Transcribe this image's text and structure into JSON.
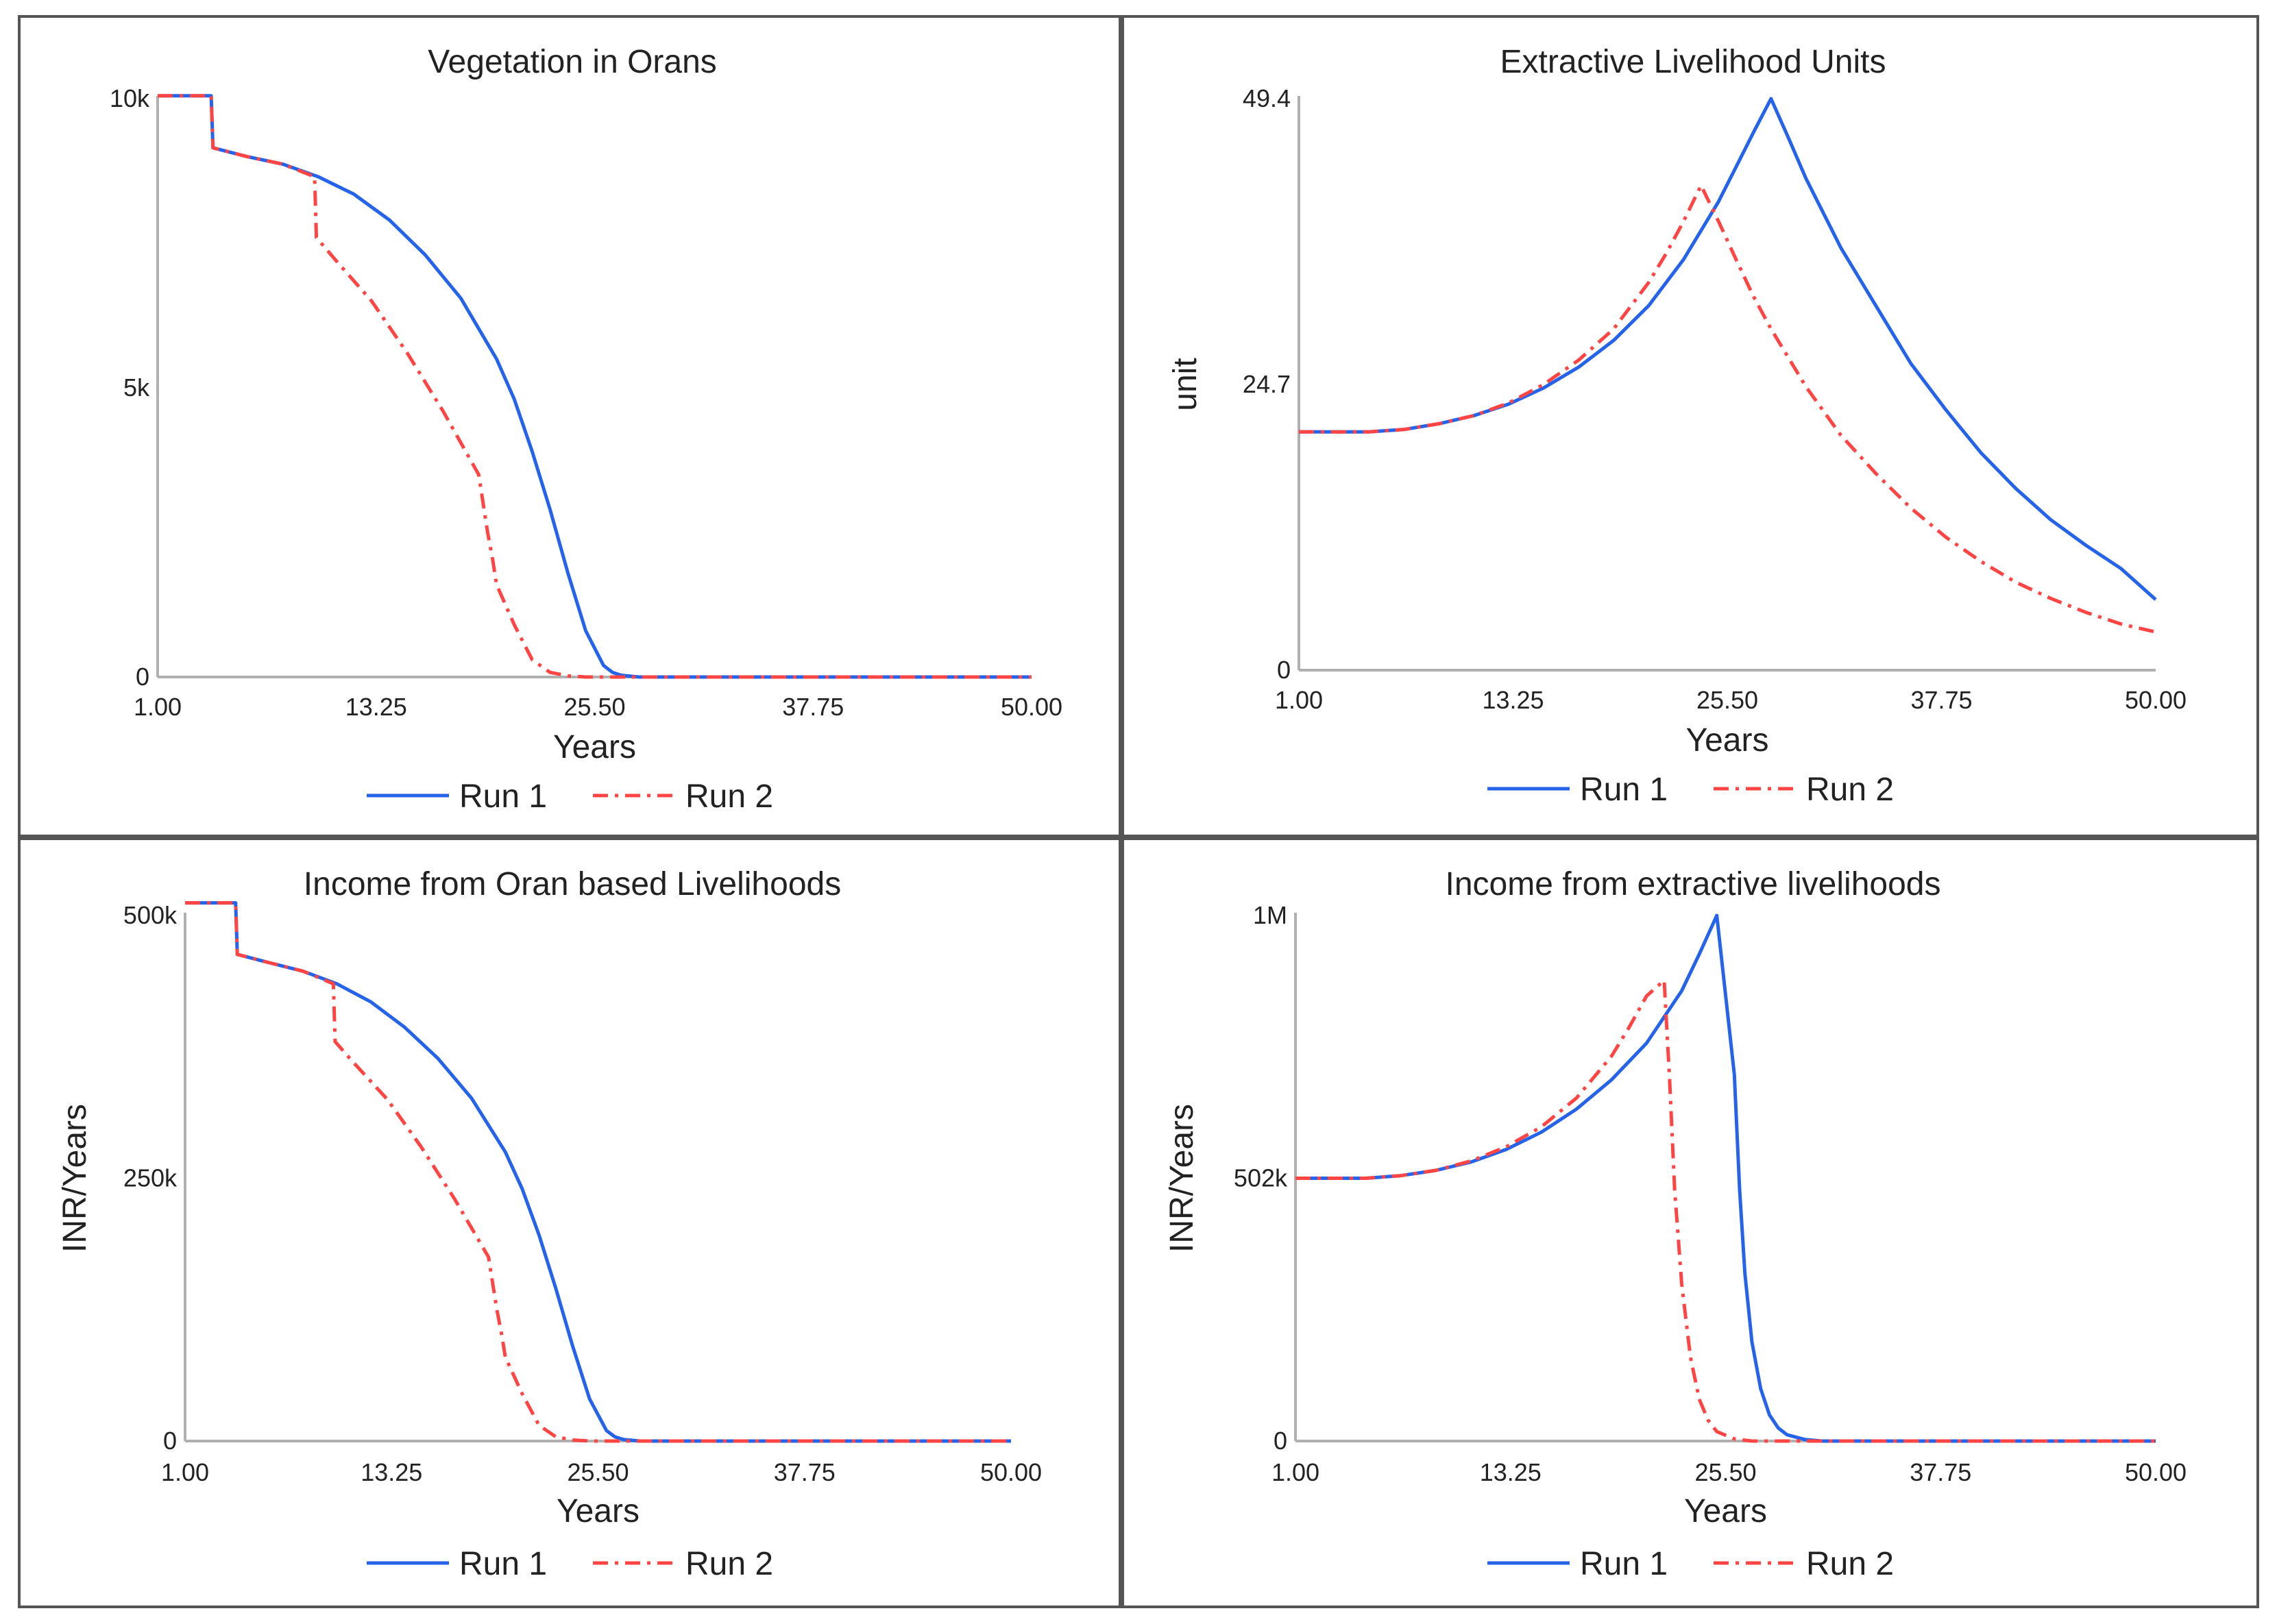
{
  "chart_data": [
    {
      "type": "line",
      "title": "Vegetation in Orans",
      "xlabel": "Years",
      "ylabel": "",
      "xlim": [
        1,
        50
      ],
      "ylim": [
        0,
        10000
      ],
      "x_ticks": [
        "1.00",
        "13.25",
        "25.50",
        "37.75",
        "50.00"
      ],
      "y_ticks": [
        {
          "value": 0,
          "label": "0"
        },
        {
          "value": 5000,
          "label": "5k"
        },
        {
          "value": 10000,
          "label": "10k"
        }
      ],
      "legend": "bottom-center",
      "series": [
        {
          "name": "Run 1",
          "color": "#2563eb",
          "style": "solid",
          "x": [
            1,
            4,
            4.1,
            6,
            8,
            10,
            12,
            14,
            16,
            18,
            20,
            21,
            22,
            23,
            24,
            25,
            26,
            26.5,
            27,
            28,
            29,
            30,
            35,
            40,
            45,
            50
          ],
          "y": [
            10050,
            10050,
            9150,
            9000,
            8870,
            8650,
            8350,
            7900,
            7300,
            6550,
            5500,
            4800,
            3900,
            2900,
            1800,
            800,
            200,
            80,
            30,
            0,
            0,
            0,
            0,
            0,
            0,
            0
          ]
        },
        {
          "name": "Run 2",
          "color": "#ff4444",
          "style": "dashdot",
          "x": [
            1,
            4,
            4.1,
            6,
            8,
            9.8,
            9.9,
            11,
            13,
            15,
            17,
            19,
            19.5,
            19.8,
            20,
            21,
            22,
            23,
            24,
            25,
            26,
            30,
            35,
            40,
            45,
            50
          ],
          "y": [
            10050,
            10050,
            9150,
            9000,
            8870,
            8650,
            7600,
            7200,
            6500,
            5600,
            4600,
            3500,
            2500,
            2000,
            1600,
            900,
            300,
            80,
            20,
            0,
            0,
            0,
            0,
            0,
            0,
            0
          ]
        }
      ]
    },
    {
      "type": "line",
      "title": "Extractive Livelihood Units",
      "xlabel": "Years",
      "ylabel": "unit",
      "xlim": [
        1,
        50
      ],
      "ylim": [
        0,
        49.4
      ],
      "x_ticks": [
        "1.00",
        "13.25",
        "25.50",
        "37.75",
        "50.00"
      ],
      "y_ticks": [
        {
          "value": 0,
          "label": "0"
        },
        {
          "value": 24.7,
          "label": "24.7"
        },
        {
          "value": 49.4,
          "label": "49.4"
        }
      ],
      "legend": "bottom-center",
      "series": [
        {
          "name": "Run 1",
          "color": "#2563eb",
          "style": "solid",
          "x": [
            1,
            3,
            5,
            7,
            9,
            11,
            13,
            15,
            17,
            19,
            21,
            23,
            25,
            26,
            27,
            28,
            29,
            30,
            32,
            34,
            36,
            38,
            40,
            42,
            44,
            46,
            48,
            50
          ],
          "y": [
            20.6,
            20.6,
            20.6,
            20.8,
            21.3,
            22.0,
            23.0,
            24.4,
            26.2,
            28.5,
            31.5,
            35.5,
            40.5,
            43.5,
            46.5,
            49.4,
            46.0,
            42.5,
            36.5,
            31.5,
            26.5,
            22.5,
            18.8,
            15.7,
            13.0,
            10.8,
            8.8,
            6.1
          ]
        },
        {
          "name": "Run 2",
          "color": "#ff4444",
          "style": "dashdot",
          "x": [
            1,
            3,
            5,
            7,
            9,
            11,
            13,
            15,
            17,
            19,
            21,
            22,
            23,
            24,
            25,
            26,
            27,
            28,
            30,
            32,
            34,
            36,
            38,
            40,
            42,
            44,
            46,
            48,
            50
          ],
          "y": [
            20.6,
            20.6,
            20.6,
            20.8,
            21.3,
            22.0,
            23.1,
            24.7,
            26.8,
            29.5,
            33.5,
            36.0,
            38.8,
            41.9,
            38.8,
            35.5,
            32.3,
            29.5,
            24.5,
            20.3,
            17.0,
            14.0,
            11.5,
            9.4,
            7.6,
            6.2,
            5.0,
            4.0,
            3.3
          ]
        }
      ]
    },
    {
      "type": "line",
      "title": "Income from Oran based Livelihoods",
      "xlabel": "Years",
      "ylabel": "INR/Years",
      "xlim": [
        1,
        50
      ],
      "ylim": [
        0,
        500000
      ],
      "x_ticks": [
        "1.00",
        "13.25",
        "25.50",
        "37.75",
        "50.00"
      ],
      "y_ticks": [
        {
          "value": 0,
          "label": "0"
        },
        {
          "value": 250000,
          "label": "250k"
        },
        {
          "value": 500000,
          "label": "500k"
        }
      ],
      "legend": "bottom-center",
      "series": [
        {
          "name": "Run 1",
          "color": "#2563eb",
          "style": "solid",
          "x": [
            1,
            4,
            4.1,
            6,
            8,
            10,
            12,
            14,
            16,
            18,
            20,
            21,
            22,
            23,
            24,
            25,
            26,
            26.5,
            27,
            28,
            29,
            30,
            35,
            40,
            45,
            50
          ],
          "y": [
            512000,
            512000,
            463000,
            455000,
            447000,
            435000,
            418000,
            394000,
            364000,
            326000,
            275000,
            240000,
            196000,
            145000,
            90000,
            40000,
            10000,
            4000,
            1500,
            0,
            0,
            0,
            0,
            0,
            0,
            0
          ]
        },
        {
          "name": "Run 2",
          "color": "#ff4444",
          "style": "dashdot",
          "x": [
            1,
            4,
            4.1,
            6,
            8,
            9.8,
            9.9,
            11,
            13,
            15,
            17,
            19,
            19.5,
            19.8,
            20,
            21,
            22,
            23,
            24,
            25,
            26,
            30,
            35,
            40,
            45,
            50
          ],
          "y": [
            512000,
            512000,
            463000,
            455000,
            447000,
            435000,
            380000,
            360000,
            325000,
            280000,
            230000,
            175000,
            125000,
            100000,
            80000,
            45000,
            15000,
            4000,
            1000,
            0,
            0,
            0,
            0,
            0,
            0,
            0
          ]
        }
      ]
    },
    {
      "type": "line",
      "title": "Income from extractive livelihoods",
      "xlabel": "Years",
      "ylabel": "INR/Years",
      "xlim": [
        1,
        50
      ],
      "ylim": [
        0,
        1004000
      ],
      "x_ticks": [
        "1.00",
        "13.25",
        "25.50",
        "37.75",
        "50.00"
      ],
      "y_ticks": [
        {
          "value": 0,
          "label": "0"
        },
        {
          "value": 502000,
          "label": "502k"
        },
        {
          "value": 1004000,
          "label": "1M"
        }
      ],
      "legend": "bottom-center",
      "series": [
        {
          "name": "Run 1",
          "color": "#2563eb",
          "style": "solid",
          "x": [
            1,
            3,
            5,
            7,
            9,
            11,
            13,
            15,
            17,
            19,
            21,
            23,
            24,
            25,
            26,
            26.3,
            26.6,
            27,
            27.5,
            28,
            28.5,
            29,
            30,
            31,
            35,
            40,
            45,
            50
          ],
          "y": [
            502000,
            502000,
            502000,
            507000,
            517000,
            533000,
            557000,
            590000,
            634000,
            690000,
            760000,
            860000,
            930000,
            1004000,
            700000,
            480000,
            320000,
            190000,
            100000,
            50000,
            25000,
            12000,
            3000,
            0,
            0,
            0,
            0,
            0
          ]
        },
        {
          "name": "Run 2",
          "color": "#ff4444",
          "style": "dashdot",
          "x": [
            1,
            3,
            5,
            7,
            9,
            11,
            13,
            15,
            17,
            19,
            20,
            21,
            22,
            22.3,
            22.6,
            23,
            23.5,
            24,
            24.5,
            25,
            26,
            27,
            30,
            35,
            40,
            45,
            50
          ],
          "y": [
            502000,
            502000,
            502000,
            507000,
            517000,
            535000,
            562000,
            600000,
            655000,
            735000,
            790000,
            850000,
            880000,
            700000,
            480000,
            300000,
            160000,
            80000,
            40000,
            18000,
            4000,
            0,
            0,
            0,
            0,
            0,
            0
          ]
        }
      ]
    }
  ]
}
